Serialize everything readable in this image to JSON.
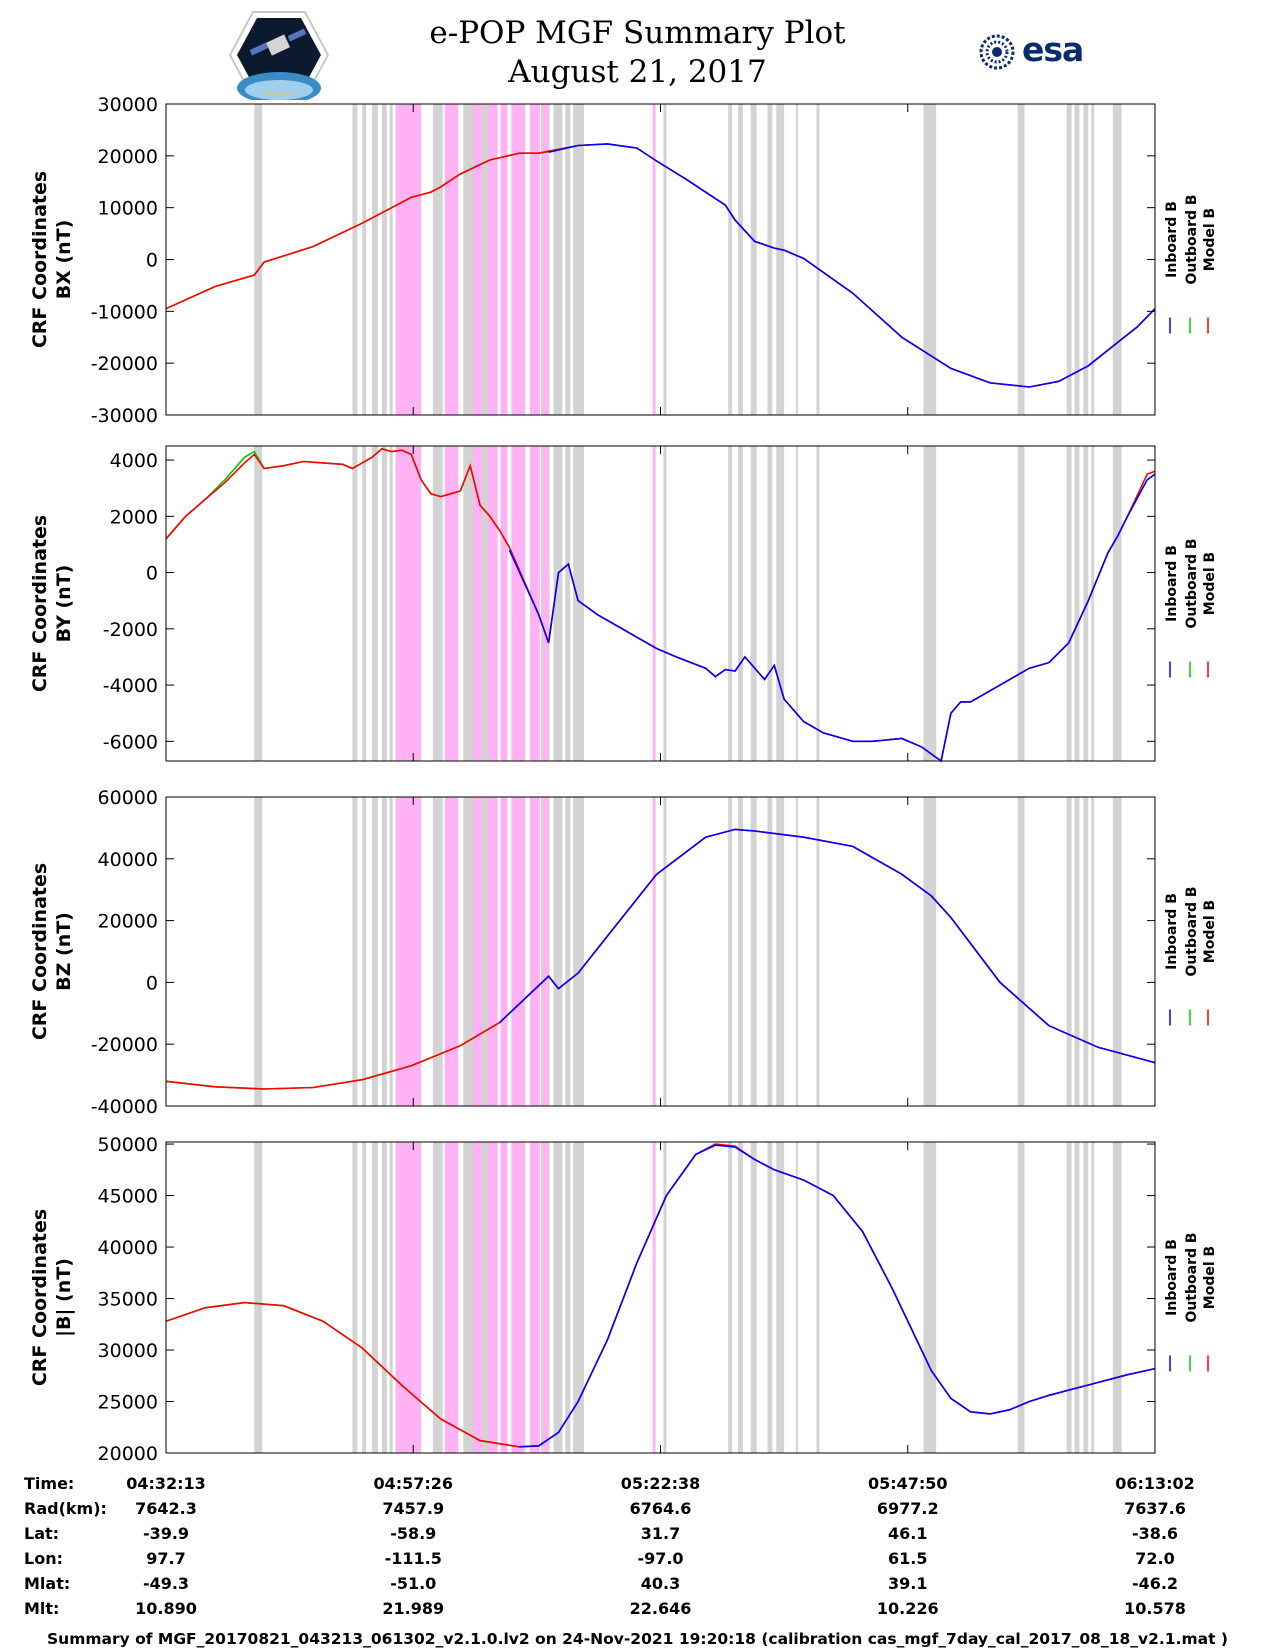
{
  "header": {
    "title_line1": "e-POP MGF Summary Plot",
    "title_line2": "August 21, 2017",
    "logo_left": "CASSIOPE",
    "logo_right": "esa"
  },
  "colors": {
    "inboard": "#0000ff",
    "outboard": "#00cc00",
    "model": "#ff0000",
    "gap_gray": "#d3d3d3",
    "gap_pink": "#ffb3f5"
  },
  "legend_labels": [
    "Inboard B",
    "Outboard B",
    "Model B"
  ],
  "table": {
    "row_labels": [
      "Time:",
      "Rad(km):",
      "Lat:",
      "Lon:",
      "Mlat:",
      "Mlt:"
    ],
    "columns": [
      {
        "Time": "04:32:13",
        "Rad": "7642.3",
        "Lat": "-39.9",
        "Lon": "97.7",
        "Mlat": "-49.3",
        "Mlt": "10.890"
      },
      {
        "Time": "04:57:26",
        "Rad": "7457.9",
        "Lat": "-58.9",
        "Lon": "-111.5",
        "Mlat": "-51.0",
        "Mlt": "21.989"
      },
      {
        "Time": "05:22:38",
        "Rad": "6764.6",
        "Lat": "31.7",
        "Lon": "-97.0",
        "Mlat": "40.3",
        "Mlt": "22.646"
      },
      {
        "Time": "05:47:50",
        "Rad": "6977.2",
        "Lat": "46.1",
        "Lon": "61.5",
        "Mlat": "39.1",
        "Mlt": "10.226"
      },
      {
        "Time": "06:13:02",
        "Rad": "7637.6",
        "Lat": "-38.6",
        "Lon": "72.0",
        "Mlat": "-46.2",
        "Mlt": "10.578"
      }
    ]
  },
  "footer": "Summary of MGF_20170821_043213_061302_v2.1.0.lv2 on 24-Nov-2021 19:20:18 (calibration cas_mgf_7day_cal_2017_08_18_v2.1.mat )",
  "chart_data": {
    "type": "line",
    "x_unit": "minutes since 04:32:13",
    "xlim": [
      0,
      100.8
    ],
    "xticks": [
      0,
      25.2,
      50.4,
      75.6,
      100.8
    ],
    "gaps_gray": [
      [
        9,
        9.8
      ],
      [
        19,
        19.5
      ],
      [
        20,
        20.4
      ],
      [
        21,
        21.6
      ],
      [
        22,
        22.5
      ],
      [
        22.8,
        23.1
      ],
      [
        27.2,
        28.2
      ],
      [
        28.6,
        29.2
      ],
      [
        30.3,
        31.4
      ],
      [
        32,
        33
      ],
      [
        38.2,
        39.1
      ],
      [
        39.5,
        40.4
      ],
      [
        40.7,
        41.2
      ],
      [
        41.5,
        42.6
      ],
      [
        50.7,
        51
      ],
      [
        57.3,
        57.7
      ],
      [
        58.3,
        58.8
      ],
      [
        59.6,
        60.2
      ],
      [
        61.3,
        61.8
      ],
      [
        62.2,
        63
      ],
      [
        64.2,
        64.4
      ],
      [
        66.3,
        66.6
      ],
      [
        77.2,
        78.5
      ],
      [
        86.8,
        87.5
      ],
      [
        91.8,
        92.3
      ],
      [
        92.6,
        93.1
      ],
      [
        93.5,
        94
      ],
      [
        94.3,
        94.6
      ],
      [
        96.5,
        97.4
      ]
    ],
    "gaps_pink": [
      [
        23.4,
        26
      ],
      [
        28.4,
        29.8
      ],
      [
        31.3,
        32.2
      ],
      [
        32.8,
        33.8
      ],
      [
        34.1,
        34.8
      ],
      [
        35.2,
        36.6
      ],
      [
        37.1,
        38.1
      ],
      [
        38.4,
        39.0
      ],
      [
        49.6,
        49.9
      ]
    ],
    "panels": [
      {
        "ylabel": "CRF Coordinates\nBX (nT)",
        "ylabel_line1": "CRF Coordinates",
        "ylabel_line2": "BX (nT)",
        "ylim": [
          -30000,
          30000
        ],
        "yticks": [
          -30000,
          -20000,
          -10000,
          0,
          10000,
          20000,
          30000
        ],
        "series": [
          {
            "name": "Outboard B",
            "color": "#00cc00",
            "x": [
              0,
              5,
              9,
              10,
              15,
              20,
              22,
              23,
              25,
              27,
              28,
              30,
              33,
              36,
              38,
              39
            ],
            "y": [
              -9500,
              -5200,
              -3000,
              -500,
              2500,
              7000,
              9000,
              10000,
              12000,
              13000,
              14000,
              16500,
              19200,
              20500,
              20500,
              20800
            ]
          },
          {
            "name": "Model B",
            "color": "#ff0000",
            "x": [
              0,
              5,
              9,
              10,
              15,
              20,
              22,
              23,
              25,
              27,
              28,
              30,
              33,
              36,
              38,
              39,
              42,
              45,
              48,
              50,
              53,
              57,
              58,
              60,
              62,
              63,
              65,
              70,
              75,
              80,
              84,
              88,
              91,
              94,
              97,
              99,
              100.8
            ],
            "y": [
              -9500,
              -5200,
              -3000,
              -500,
              2500,
              7000,
              9000,
              10000,
              12000,
              13000,
              14000,
              16500,
              19200,
              20500,
              20500,
              20900,
              22000,
              22300,
              21500,
              19000,
              15500,
              10500,
              7600,
              3500,
              2200,
              1800,
              200,
              -6500,
              -15000,
              -21000,
              -23800,
              -24600,
              -23500,
              -20500,
              -16000,
              -13000,
              -9500
            ]
          },
          {
            "name": "Inboard B",
            "color": "#0000ff",
            "x": [
              39,
              42,
              45,
              48,
              50,
              53,
              57,
              58,
              60,
              62,
              63,
              65,
              70,
              75,
              80,
              84,
              88,
              91,
              94,
              97,
              99,
              100.8
            ],
            "y": [
              20700,
              22000,
              22300,
              21500,
              19000,
              15500,
              10500,
              7600,
              3500,
              2200,
              1800,
              200,
              -6500,
              -15000,
              -21000,
              -23800,
              -24600,
              -23500,
              -20500,
              -16000,
              -13000,
              -9500
            ]
          }
        ]
      },
      {
        "ylabel": "CRF Coordinates\nBY (nT)",
        "ylabel_line1": "CRF Coordinates",
        "ylabel_line2": "BY (nT)",
        "ylim": [
          -6700,
          4500
        ],
        "yticks": [
          -6000,
          -4000,
          -2000,
          0,
          2000,
          4000
        ],
        "series": [
          {
            "name": "Outboard B",
            "color": "#00cc00",
            "x": [
              0,
              2,
              4,
              6,
              8,
              9,
              10,
              12,
              14,
              16,
              18,
              19,
              20,
              21,
              22,
              23,
              24,
              25,
              26,
              27,
              28,
              29,
              30,
              31,
              32,
              33,
              34,
              35
            ],
            "y": [
              1200,
              2000,
              2600,
              3300,
              4100,
              4300,
              3700,
              3800,
              3950,
              3900,
              3850,
              3700,
              3900,
              4100,
              4400,
              4300,
              4350,
              4200,
              3300,
              2800,
              2700,
              2800,
              2900,
              3800,
              2400,
              2000,
              1500,
              900
            ]
          },
          {
            "name": "Model B",
            "color": "#ff0000",
            "x": [
              0,
              2,
              4,
              6,
              8,
              9,
              10,
              12,
              14,
              16,
              18,
              19,
              20,
              21,
              22,
              23,
              24,
              25,
              26,
              27,
              28,
              29,
              30,
              31,
              32,
              33,
              34,
              35,
              38,
              39,
              40,
              41,
              42,
              44,
              48,
              50,
              52,
              55,
              56,
              57,
              58,
              59,
              61,
              62,
              63,
              65,
              67,
              70,
              72,
              75,
              77,
              79,
              80,
              81,
              82,
              84,
              86,
              88,
              90,
              92,
              94,
              96,
              97,
              98,
              100,
              100.8
            ],
            "y": [
              1200,
              2000,
              2600,
              3200,
              3900,
              4200,
              3700,
              3800,
              3950,
              3900,
              3850,
              3700,
              3900,
              4100,
              4400,
              4300,
              4350,
              4200,
              3300,
              2800,
              2700,
              2800,
              2900,
              3800,
              2400,
              2000,
              1500,
              900,
              -1500,
              -2500,
              0,
              300,
              -1000,
              -1500,
              -2300,
              -2700,
              -3000,
              -3400,
              -3700,
              -3450,
              -3500,
              -3000,
              -3800,
              -3300,
              -4500,
              -5300,
              -5700,
              -6000,
              -6000,
              -5900,
              -6200,
              -6700,
              -5000,
              -4600,
              -4600,
              -4200,
              -3800,
              -3400,
              -3200,
              -2500,
              -1000,
              700,
              1300,
              2000,
              3500,
              3600
            ]
          },
          {
            "name": "Inboard B",
            "color": "#0000ff",
            "x": [
              35,
              38,
              39,
              40,
              41,
              42,
              44,
              48,
              50,
              52,
              55,
              56,
              57,
              58,
              59,
              61,
              62,
              63,
              65,
              67,
              70,
              72,
              75,
              77,
              79,
              80,
              81,
              82,
              84,
              86,
              88,
              90,
              92,
              94,
              96,
              97,
              98,
              100,
              100.8
            ],
            "y": [
              800,
              -1500,
              -2500,
              0,
              300,
              -1000,
              -1500,
              -2300,
              -2700,
              -3000,
              -3400,
              -3700,
              -3450,
              -3500,
              -3000,
              -3800,
              -3300,
              -4500,
              -5300,
              -5700,
              -6000,
              -6000,
              -5900,
              -6200,
              -6700,
              -5000,
              -4600,
              -4600,
              -4200,
              -3800,
              -3400,
              -3200,
              -2500,
              -1000,
              700,
              1300,
              2000,
              3300,
              3500
            ]
          }
        ]
      },
      {
        "ylabel": "CRF Coordinates\nBZ (nT)",
        "ylabel_line1": "CRF Coordinates",
        "ylabel_line2": "BZ (nT)",
        "ylim": [
          -40000,
          60000
        ],
        "yticks": [
          -40000,
          -20000,
          0,
          20000,
          40000,
          60000
        ],
        "series": [
          {
            "name": "Outboard B",
            "color": "#00cc00",
            "x": [
              0,
              5,
              10,
              15,
              20,
              25,
              30,
              34
            ],
            "y": [
              -32000,
              -33800,
              -34500,
              -34000,
              -31500,
              -27000,
              -20500,
              -13000
            ]
          },
          {
            "name": "Model B",
            "color": "#ff0000",
            "x": [
              0,
              5,
              10,
              15,
              20,
              25,
              30,
              34,
              38,
              39,
              40,
              42,
              45,
              50,
              55,
              58,
              60,
              65,
              70,
              75,
              78,
              80,
              85,
              90,
              95,
              100.8
            ],
            "y": [
              -32000,
              -33800,
              -34500,
              -34000,
              -31500,
              -27000,
              -20500,
              -13000,
              -1000,
              2000,
              -2000,
              3000,
              15000,
              35000,
              47000,
              49500,
              49000,
              47000,
              44000,
              35000,
              28000,
              21000,
              0,
              -14000,
              -21000,
              -26000
            ]
          },
          {
            "name": "Inboard B",
            "color": "#0000ff",
            "x": [
              34,
              38,
              39,
              40,
              42,
              45,
              50,
              55,
              58,
              60,
              65,
              70,
              75,
              78,
              80,
              85,
              90,
              95,
              100.8
            ],
            "y": [
              -13000,
              -1000,
              2000,
              -2000,
              3000,
              15000,
              35000,
              47000,
              49500,
              49000,
              47000,
              44000,
              35000,
              28000,
              21000,
              0,
              -14000,
              -21000,
              -26000
            ]
          }
        ]
      },
      {
        "ylabel": "CRF Coordinates\n|B| (nT)",
        "ylabel_line1": "CRF Coordinates",
        "ylabel_line2": "|B| (nT)",
        "ylim": [
          20000,
          50200
        ],
        "yticks": [
          20000,
          25000,
          30000,
          35000,
          40000,
          45000,
          50000
        ],
        "series": [
          {
            "name": "Outboard B",
            "color": "#00cc00",
            "x": [
              0,
              4,
              8,
              12,
              16,
              20,
              24,
              28,
              32,
              36,
              38
            ],
            "y": [
              32800,
              34100,
              34600,
              34300,
              32800,
              30200,
              26600,
              23300,
              21200,
              20600,
              20700
            ]
          },
          {
            "name": "Model B",
            "color": "#ff0000",
            "x": [
              0,
              4,
              8,
              12,
              16,
              20,
              24,
              28,
              32,
              36,
              38,
              40,
              42,
              45,
              48,
              51,
              54,
              56,
              58,
              60,
              62,
              65,
              68,
              71,
              74,
              76,
              78,
              80,
              82,
              84,
              86,
              88,
              90,
              94,
              98,
              100.8
            ],
            "y": [
              32800,
              34100,
              34600,
              34300,
              32800,
              30200,
              26600,
              23300,
              21200,
              20600,
              20700,
              22000,
              25000,
              31000,
              38500,
              45000,
              49000,
              50000,
              49800,
              48500,
              47500,
              46500,
              45000,
              41500,
              36000,
              32000,
              28000,
              25300,
              24000,
              23800,
              24200,
              25000,
              25600,
              26600,
              27600,
              28200
            ]
          },
          {
            "name": "Inboard B",
            "color": "#0000ff",
            "x": [
              36,
              38,
              40,
              42,
              45,
              48,
              51,
              54,
              56,
              58,
              60,
              62,
              65,
              68,
              71,
              74,
              76,
              78,
              80,
              82,
              84,
              86,
              88,
              90,
              94,
              98,
              100.8
            ],
            "y": [
              20600,
              20700,
              22000,
              25000,
              31000,
              38500,
              45000,
              49000,
              49900,
              49700,
              48500,
              47500,
              46500,
              45000,
              41500,
              36000,
              32000,
              28000,
              25300,
              24000,
              23800,
              24200,
              25000,
              25600,
              26600,
              27600,
              28200
            ]
          }
        ]
      }
    ]
  }
}
